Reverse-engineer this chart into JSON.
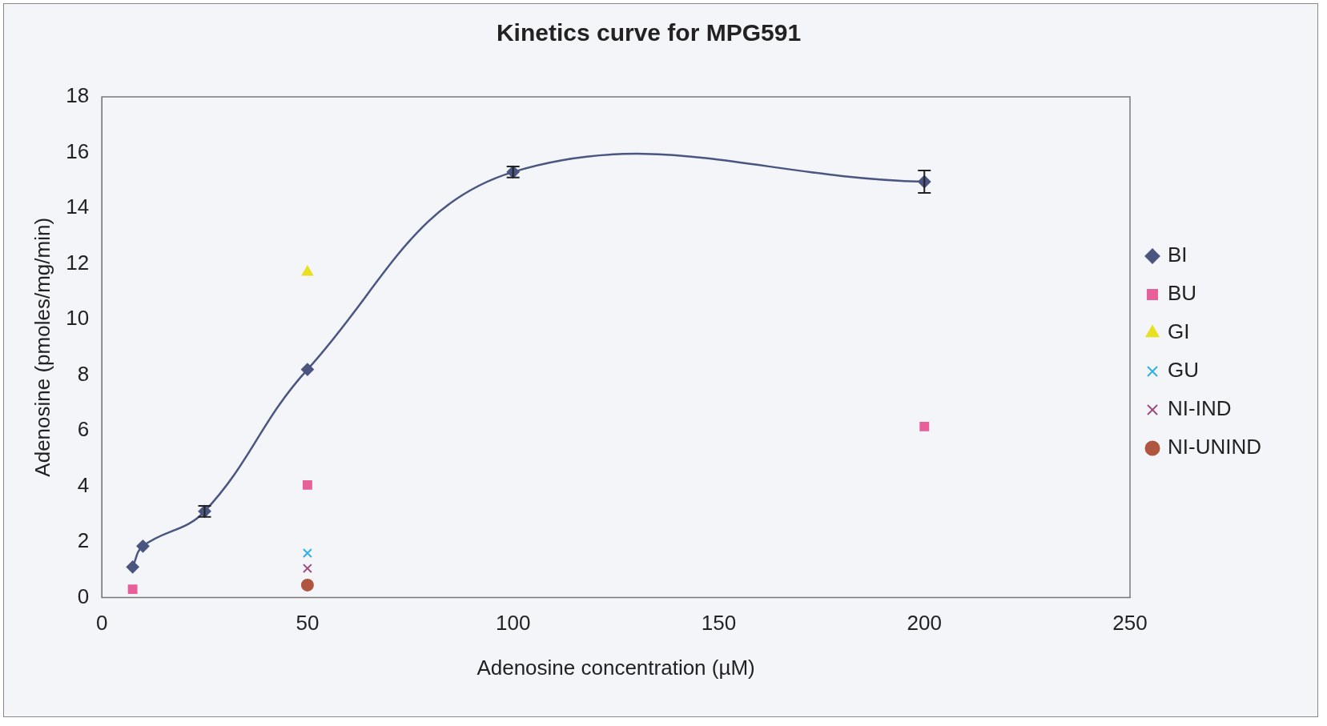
{
  "chart_data": {
    "type": "scatter",
    "title": "Kinetics curve for MPG591",
    "xlabel": "Adenosine concentration (µM)",
    "ylabel": "Adenosine (pmoles/mg/min)",
    "xlim": [
      0,
      250
    ],
    "xticks": [
      0,
      50,
      100,
      150,
      200,
      250
    ],
    "ylim": [
      0,
      18
    ],
    "yticks": [
      0,
      2,
      4,
      6,
      8,
      10,
      12,
      14,
      16,
      18
    ],
    "grid": false,
    "legend": "right",
    "series": [
      {
        "name": "BI",
        "type": "line",
        "color": "#4a5580",
        "marker": "diamond",
        "x": [
          7.5,
          10,
          25,
          50,
          100,
          200
        ],
        "values": [
          1.1,
          1.85,
          3.1,
          8.2,
          15.3,
          14.95
        ],
        "errors": [
          null,
          null,
          0.2,
          null,
          0.2,
          0.4
        ]
      },
      {
        "name": "BU",
        "color": "#e8609a",
        "marker": "square",
        "x": [
          7.5,
          50,
          200
        ],
        "values": [
          0.3,
          4.05,
          6.15
        ]
      },
      {
        "name": "GI",
        "color": "#e8e020",
        "marker": "triangle",
        "x": [
          50
        ],
        "values": [
          11.7
        ]
      },
      {
        "name": "GU",
        "color": "#30b0e8",
        "marker": "cross",
        "x": [
          50
        ],
        "values": [
          1.6
        ]
      },
      {
        "name": "NI-IND",
        "color": "#a04a80",
        "marker": "cross",
        "x": [
          50
        ],
        "values": [
          1.05
        ]
      },
      {
        "name": "NI-UNIND",
        "color": "#b05540",
        "marker": "circle",
        "x": [
          50
        ],
        "values": [
          0.45
        ]
      }
    ]
  }
}
